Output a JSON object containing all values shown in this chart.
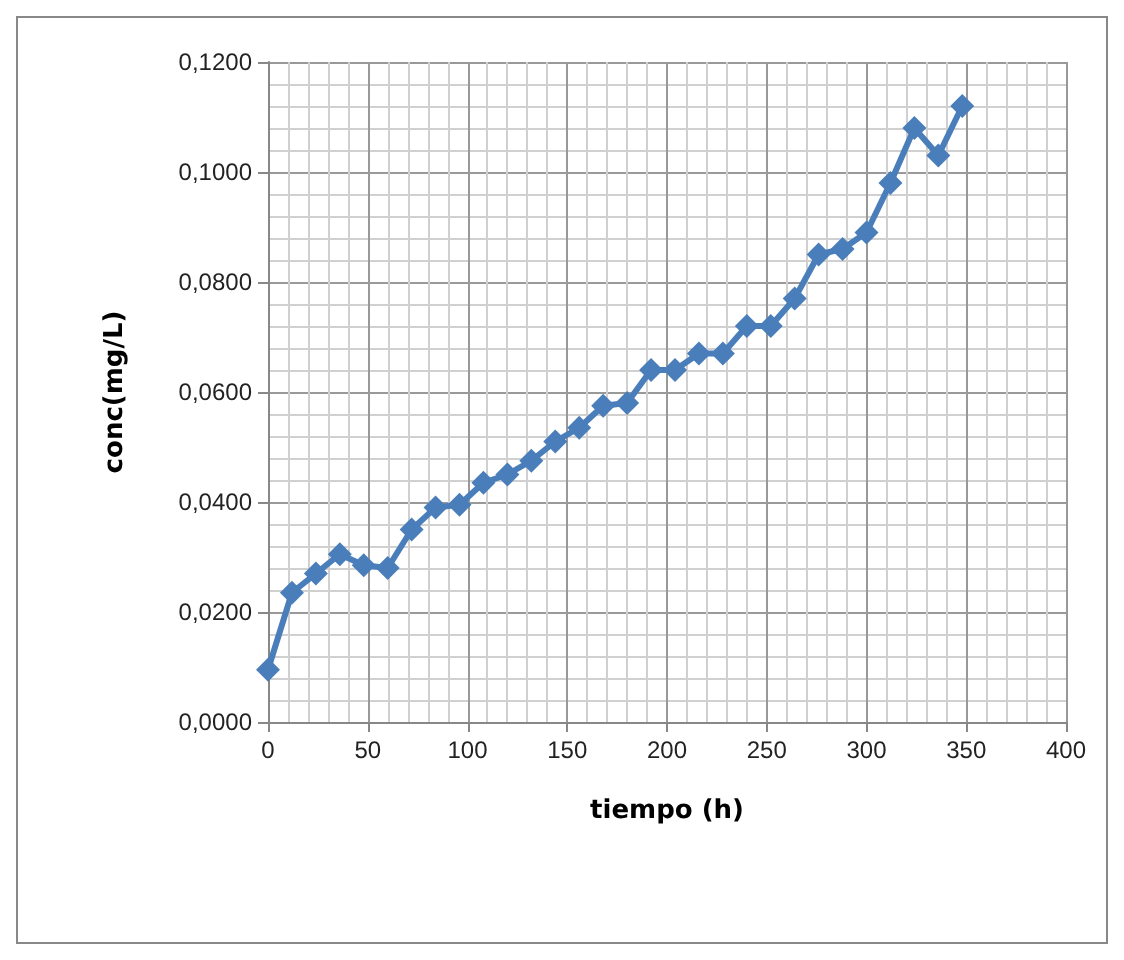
{
  "chart_data": {
    "type": "line",
    "xlabel": "tiempo (h)",
    "ylabel": "conc(mg/L)",
    "x": [
      0,
      12,
      24,
      36,
      48,
      60,
      72,
      84,
      96,
      108,
      120,
      132,
      144,
      156,
      168,
      180,
      192,
      204,
      216,
      228,
      240,
      252,
      264,
      276,
      288,
      300,
      312,
      324,
      336,
      348
    ],
    "series": [
      {
        "color": "#4a7ebb",
        "values": [
          0.0095,
          0.0235,
          0.027,
          0.0305,
          0.0285,
          0.028,
          0.035,
          0.039,
          0.0395,
          0.0435,
          0.045,
          0.0475,
          0.051,
          0.0535,
          0.0575,
          0.058,
          0.064,
          0.064,
          0.067,
          0.067,
          0.072,
          0.072,
          0.077,
          0.085,
          0.086,
          0.089,
          0.098,
          0.108,
          0.103,
          0.112
        ]
      }
    ],
    "xlim": [
      0,
      400
    ],
    "xticks": [
      0,
      50,
      100,
      150,
      200,
      250,
      300,
      350,
      400
    ],
    "ylim": [
      0,
      0.12
    ],
    "yticks": [
      {
        "value": 0,
        "label": "0,0000"
      },
      {
        "value": 0.02,
        "label": "0,0200"
      },
      {
        "value": 0.04,
        "label": "0,0400"
      },
      {
        "value": 0.06,
        "label": "0,0600"
      },
      {
        "value": 0.08,
        "label": "0,0800"
      },
      {
        "value": 0.1,
        "label": "0,1000"
      },
      {
        "value": 0.12,
        "label": "0,1200"
      }
    ],
    "grid": true,
    "marker": "diamond",
    "line_style": "solid"
  }
}
